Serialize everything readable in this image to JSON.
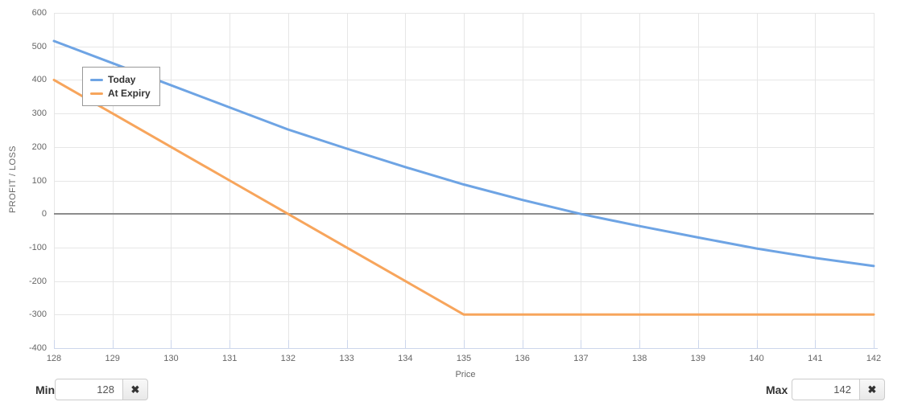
{
  "chart_data": {
    "type": "line",
    "title": "",
    "xlabel": "Price",
    "ylabel": "PROFIT / LOSS",
    "x": [
      128,
      129,
      130,
      131,
      132,
      133,
      134,
      135,
      136,
      137,
      138,
      139,
      140,
      141,
      142
    ],
    "xlim": [
      128,
      142
    ],
    "ylim": [
      -400,
      600
    ],
    "x_ticks": [
      128,
      129,
      130,
      131,
      132,
      133,
      134,
      135,
      136,
      137,
      138,
      139,
      140,
      141,
      142
    ],
    "y_ticks": [
      600,
      500,
      400,
      300,
      200,
      100,
      0,
      -100,
      -200,
      -300,
      -400
    ],
    "grid": true,
    "legend_position": "top-left-inside",
    "series": [
      {
        "name": "Today",
        "color": "#6ea4e4",
        "values": [
          516,
          450,
          384,
          318,
          252,
          195,
          140,
          88,
          42,
          0,
          -36,
          -70,
          -103,
          -131,
          -155
        ]
      },
      {
        "name": "At Expiry",
        "color": "#f7a55c",
        "values": [
          400,
          300,
          200,
          100,
          0,
          -100,
          -200,
          -300,
          -300,
          -300,
          -300,
          -300,
          -300,
          -300,
          -300
        ]
      }
    ],
    "zero_line": {
      "y": 0,
      "color": "#8c8c8c"
    },
    "grid_color": "#e6e6e6",
    "axis_line_color": "#ccd6eb",
    "tick_label_color": "#666666"
  },
  "controls": {
    "min": {
      "label": "Min",
      "value": "128",
      "clear_icon": "✖"
    },
    "max": {
      "label": "Max",
      "value": "142",
      "clear_icon": "✖"
    }
  }
}
